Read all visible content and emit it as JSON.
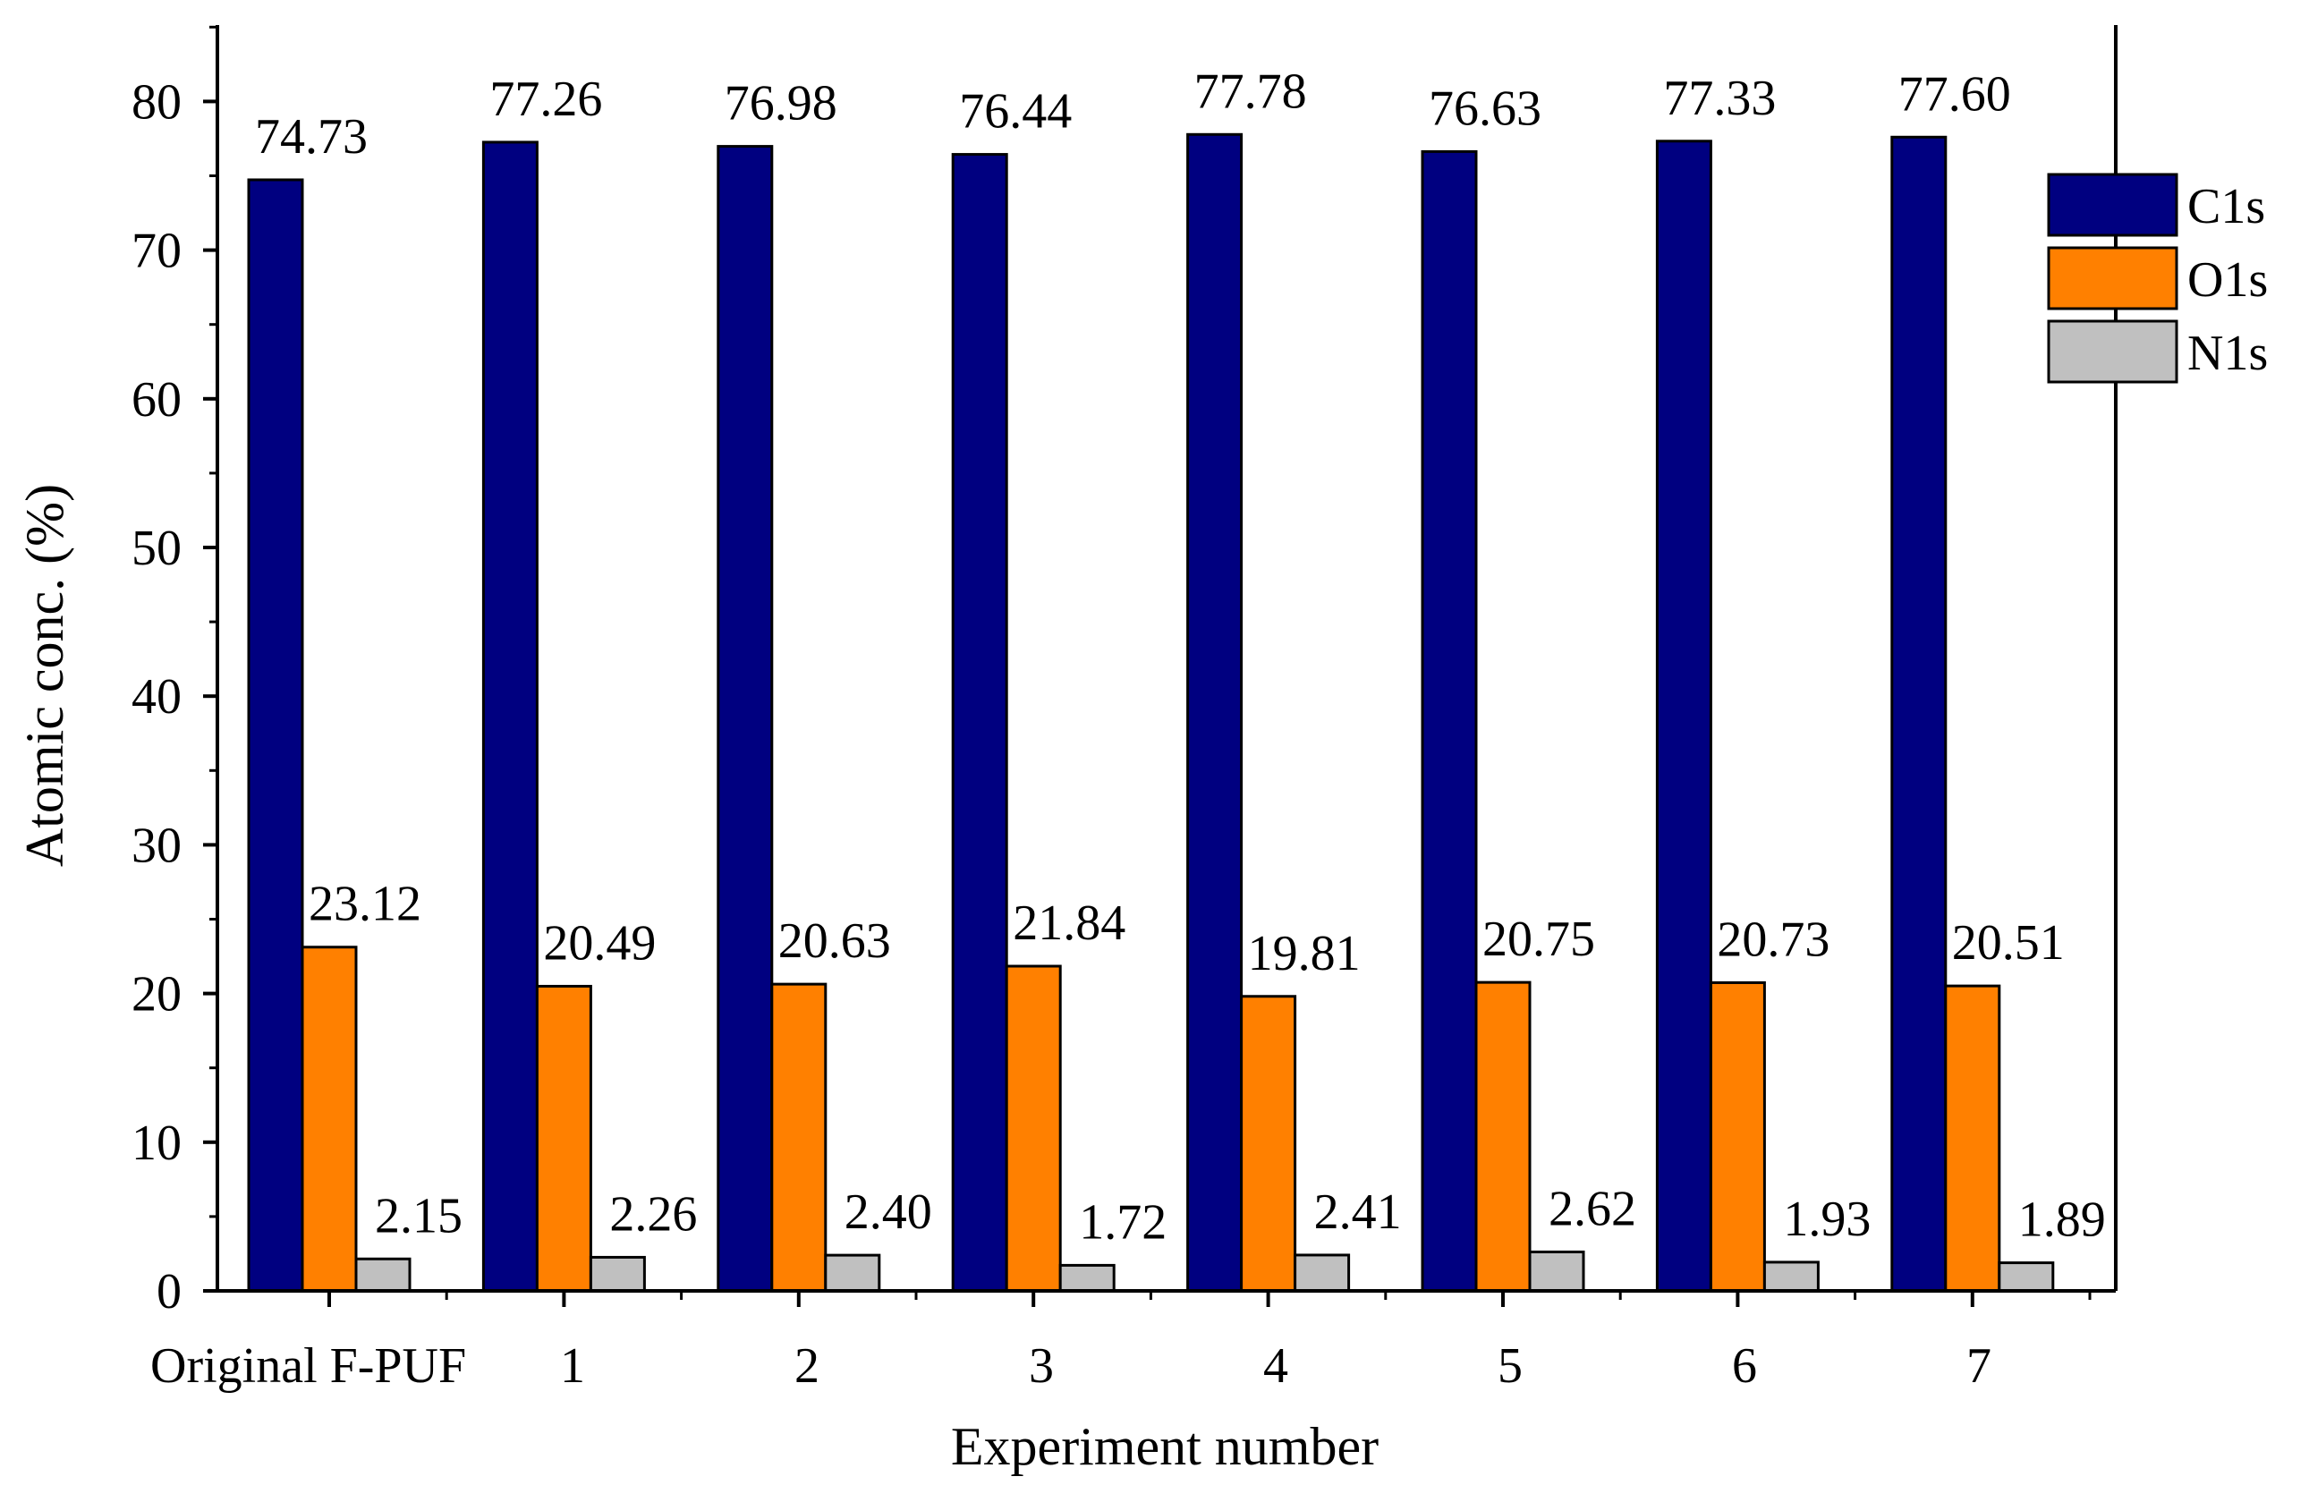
{
  "chart_data": {
    "type": "bar",
    "title": "",
    "xlabel": "Experiment number",
    "ylabel": "Atomic conc. (%)",
    "ylim": [
      0,
      85
    ],
    "yticks": [
      0,
      10,
      20,
      30,
      40,
      50,
      60,
      70,
      80
    ],
    "categories": [
      "Original F-PUF",
      "1",
      "2",
      "3",
      "4",
      "5",
      "6",
      "7"
    ],
    "series": [
      {
        "name": "C1s",
        "color": "#000080",
        "values": [
          74.73,
          77.26,
          76.98,
          76.44,
          77.78,
          76.63,
          77.33,
          77.6
        ],
        "labels": [
          "74.73",
          "77.26",
          "76.98",
          "76.44",
          "77.78",
          "76.63",
          "77.33",
          "77.60"
        ]
      },
      {
        "name": "O1s",
        "color": "#FF8000",
        "values": [
          23.12,
          20.49,
          20.63,
          21.84,
          19.81,
          20.75,
          20.73,
          20.51
        ],
        "labels": [
          "23.12",
          "20.49",
          "20.63",
          "21.84",
          "19.81",
          "20.75",
          "20.73",
          "20.51"
        ]
      },
      {
        "name": "N1s",
        "color": "#C0C0C0",
        "values": [
          2.15,
          2.26,
          2.4,
          1.72,
          2.41,
          2.62,
          1.93,
          1.89
        ],
        "labels": [
          "2.15",
          "2.26",
          "2.40",
          "1.72",
          "2.41",
          "2.62",
          "1.93",
          "1.89"
        ]
      }
    ],
    "legend_position": "top-right",
    "grid": false
  }
}
